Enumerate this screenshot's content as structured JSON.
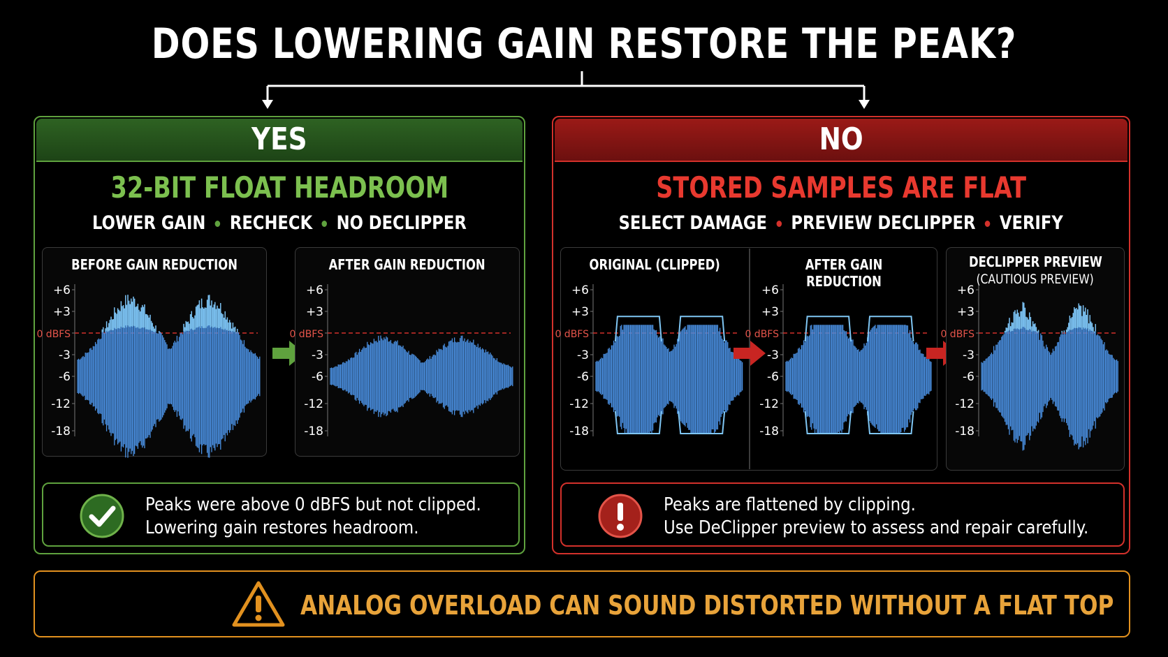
{
  "title": "DOES LOWERING GAIN RESTORE THE PEAK?",
  "colors": {
    "green": "#5fa23e",
    "red": "#d3312b",
    "orange": "#e2911f",
    "wave": "#4a90e2",
    "wave_light": "#7fc6f4"
  },
  "yes": {
    "banner": "YES",
    "subtitle": "32-BIT FLOAT HEADROOM",
    "steps": [
      "LOWER GAIN",
      "RECHECK",
      "NO DECLIPPER"
    ],
    "charts": [
      {
        "title": "BEFORE GAIN REDUCTION",
        "subtitle": "",
        "variant": "loud"
      },
      {
        "title": "AFTER GAIN REDUCTION",
        "subtitle": "",
        "variant": "reduced"
      }
    ],
    "note": [
      "Peaks were above 0 dBFS but not clipped.",
      "Lowering gain restores headroom."
    ],
    "note_icon": "check-icon"
  },
  "no": {
    "banner": "NO",
    "subtitle": "STORED SAMPLES ARE FLAT",
    "steps": [
      "SELECT DAMAGE",
      "PREVIEW DECLIPPER",
      "VERIFY"
    ],
    "charts": [
      {
        "title": "ORIGINAL (CLIPPED)",
        "subtitle": "",
        "variant": "clipped"
      },
      {
        "title": "AFTER GAIN REDUCTION",
        "subtitle": "",
        "variant": "clipped"
      },
      {
        "title": "DECLIPPER PREVIEW",
        "subtitle": "(CAUTIOUS PREVIEW)",
        "variant": "restored"
      }
    ],
    "note": [
      "Peaks are flattened by clipping.",
      "Use DeClipper preview to assess and repair carefully."
    ],
    "note_icon": "exclamation-icon"
  },
  "axis": {
    "ticks": [
      "+6",
      "+3",
      "0 dBFS",
      "-3",
      "-6",
      "-12",
      "-18"
    ],
    "zero_label": "0 dBFS"
  },
  "footer": {
    "text": "ANALOG OVERLOAD CAN SOUND DISTORTED WITHOUT A FLAT TOP",
    "icon": "warning-icon"
  }
}
